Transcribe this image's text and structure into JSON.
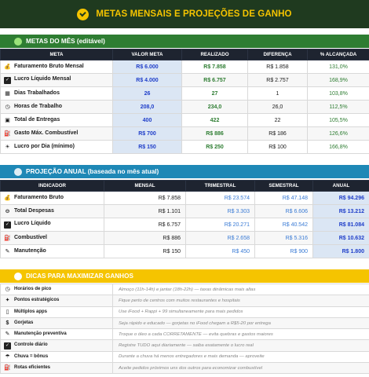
{
  "header": {
    "title": "METAS MENSAIS E PROJEÇÕES DE GANHO"
  },
  "goals": {
    "section_title": "METAS DO MÊS (editável)",
    "columns": [
      "META",
      "VALOR META",
      "REALIZADO",
      "DIFERENÇA",
      "% ALCANÇADA"
    ],
    "rows": [
      {
        "icon": "money-bag-icon",
        "glyph": "💰",
        "label": "Faturamento Bruto Mensal",
        "target": "R$ 6.000",
        "actual": "R$ 7.858",
        "diff": "R$ 1.858",
        "pct": "131,0%"
      },
      {
        "icon": "check-box-icon",
        "glyph": "✓",
        "label": "Lucro Líquido Mensal",
        "target": "R$ 4.000",
        "actual": "R$ 6.757",
        "diff": "R$ 2.757",
        "pct": "168,9%"
      },
      {
        "icon": "calendar-icon",
        "glyph": "▦",
        "label": "Dias Trabalhados",
        "target": "26",
        "actual": "27",
        "diff": "1",
        "pct": "103,8%"
      },
      {
        "icon": "clock-icon",
        "glyph": "◷",
        "label": "Horas de Trabalho",
        "target": "208,0",
        "actual": "234,0",
        "diff": "26,0",
        "pct": "112,5%"
      },
      {
        "icon": "package-icon",
        "glyph": "▣",
        "label": "Total de Entregas",
        "target": "400",
        "actual": "422",
        "diff": "22",
        "pct": "105,5%"
      },
      {
        "icon": "fuel-pump-icon",
        "glyph": "⛽",
        "label": "Gasto Máx. Combustível",
        "target": "R$ 700",
        "actual": "R$ 886",
        "diff": "R$ 186",
        "pct": "126,6%"
      },
      {
        "icon": "sun-icon",
        "glyph": "☀",
        "label": "Lucro por Dia (mínimo)",
        "target": "R$ 150",
        "actual": "R$ 250",
        "diff": "R$ 100",
        "pct": "166,8%"
      }
    ]
  },
  "projection": {
    "section_title": "PROJEÇÃO ANUAL (baseada no mês atual)",
    "columns": [
      "INDICADOR",
      "MENSAL",
      "TRIMESTRAL",
      "SEMESTRAL",
      "ANUAL"
    ],
    "rows": [
      {
        "icon": "money-bag-icon",
        "glyph": "💰",
        "label": "Faturamento Bruto",
        "monthly": "R$ 7.858",
        "quarterly": "R$ 23.574",
        "semester": "R$ 47.148",
        "annual": "R$ 94.296"
      },
      {
        "icon": "expense-icon",
        "glyph": "⊖",
        "label": "Total Despesas",
        "monthly": "R$ 1.101",
        "quarterly": "R$ 3.303",
        "semester": "R$ 6.606",
        "annual": "R$ 13.212"
      },
      {
        "icon": "check-box-icon",
        "glyph": "✓",
        "label": "Lucro Líquido",
        "monthly": "R$ 6.757",
        "quarterly": "R$ 20.271",
        "semester": "R$ 40.542",
        "annual": "R$ 81.084"
      },
      {
        "icon": "fuel-pump-icon",
        "glyph": "⛽",
        "label": "Combustível",
        "monthly": "R$ 886",
        "quarterly": "R$ 2.658",
        "semester": "R$ 5.316",
        "annual": "R$ 10.632"
      },
      {
        "icon": "wrench-icon",
        "glyph": "✎",
        "label": "Manutenção",
        "monthly": "R$ 150",
        "quarterly": "R$ 450",
        "semester": "R$ 900",
        "annual": "R$ 1.800"
      }
    ]
  },
  "tips": {
    "section_title": "DICAS PARA MAXIMIZAR GANHOS",
    "rows": [
      {
        "icon": "clock-icon",
        "glyph": "◷",
        "label": "Horários de pico",
        "tip": "Almoço (11h-14h) e jantar (18h-22h) — taxas dinâmicas mais altas"
      },
      {
        "icon": "pin-icon",
        "glyph": "✦",
        "label": "Pontos estratégicos",
        "tip": "Fique perto de centros com muitos restaurantes e hospitais"
      },
      {
        "icon": "phone-icon",
        "glyph": "▯",
        "label": "Múltiplos apps",
        "tip": "Use iFood + Rappi + 99 simultaneamente para mais pedidos"
      },
      {
        "icon": "tip-icon",
        "glyph": "$",
        "label": "Gorjetas",
        "tip": "Seja rápido e educado — gorjetas no iFood chegam a R$5-20 por entrega"
      },
      {
        "icon": "wrench-icon",
        "glyph": "✎",
        "label": "Manutenção preventiva",
        "tip": "Troque o óleo a cada CORRETAMENTE — evita quebras e gastos maiores"
      },
      {
        "icon": "check-box-icon",
        "glyph": "✓",
        "label": "Controle diário",
        "tip": "Registre TUDO aqui diariamente — saiba exatamente o lucro real"
      },
      {
        "icon": "rain-icon",
        "glyph": "☂",
        "label": "Chuva = bônus",
        "tip": "Durante a chuva há menos entregadores e mais demanda — aproveite"
      },
      {
        "icon": "route-icon",
        "glyph": "⛽",
        "label": "Rotas eficientes",
        "tip": "Aceite pedidos próximos uns dos outros para economizar combustível"
      }
    ]
  },
  "colors": {
    "header_bg": "#1f3a1f",
    "header_text": "#f5c400",
    "goals_bar": "#2e7d32",
    "projection_bar": "#1e88b6",
    "tips_bar": "#f5c400",
    "highlight_blue": "#1f3ec9",
    "positive_green": "#2e7d32"
  }
}
